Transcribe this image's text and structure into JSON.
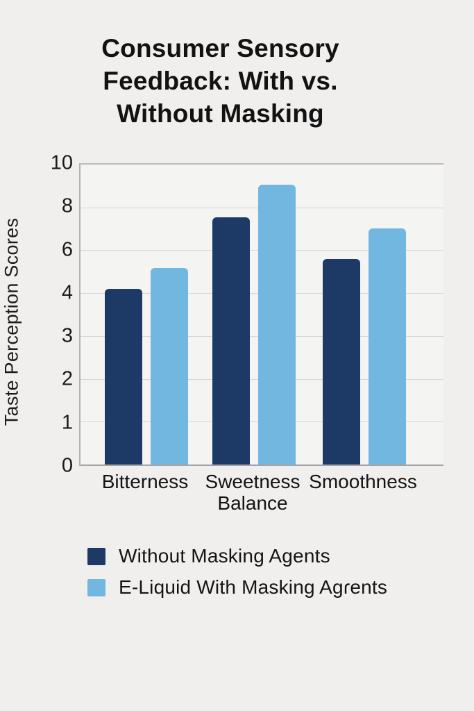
{
  "title": {
    "lines": [
      "Consumer Sensory",
      "Feedback: With vs.",
      "Without Masking"
    ]
  },
  "chart_data": {
    "type": "bar",
    "title": "Consumer Sensory Feedback: With vs. Without Masking",
    "ylabel": "Taste Perception Scores",
    "xlabel": "",
    "categories": [
      "Bitterness",
      "Sweetness Balance",
      "Smoothness"
    ],
    "y_tick_labels_top_to_bottom": [
      "10",
      "8",
      "6",
      "4",
      "3",
      "2",
      "1",
      "0"
    ],
    "axis_note": "gridlines evenly spaced but labeled 10,8,6,4,3,2,1,0 as rendered in source image",
    "ylim_as_labeled": [
      0,
      10
    ],
    "grid": true,
    "legend_position": "bottom-left",
    "series": [
      {
        "name": "Without Masking Agents",
        "color": "#1d3a66",
        "values": [
          4.1,
          7.5,
          5.6
        ],
        "render_height_fracs": [
          0.586,
          0.824,
          0.686
        ]
      },
      {
        "name": "E-Liquid With Masking Agɾents",
        "color": "#72b7e0",
        "values": [
          5.2,
          9.1,
          7.0
        ],
        "render_height_fracs": [
          0.654,
          0.934,
          0.787
        ]
      }
    ]
  },
  "colors": {
    "background": "#f0efee",
    "plot_background": "#f4f4f2",
    "gridline": "#d6d5d3",
    "axis_line": "#a5a4a2",
    "series_dark": "#1d3a66",
    "series_light": "#72b7e0",
    "text": "#141414"
  }
}
